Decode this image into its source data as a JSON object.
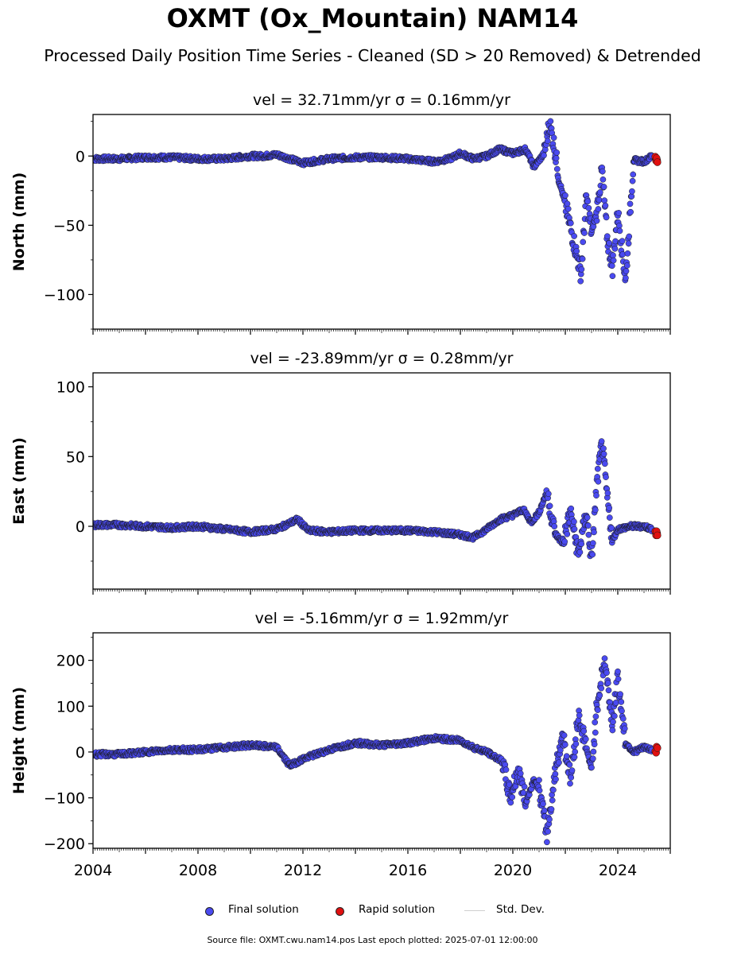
{
  "header": {
    "title": "OXMT (Ox_Mountain) NAM14",
    "subtitle": "Processed Daily Position Time Series - Cleaned (SD > 20 Removed) & Detrended"
  },
  "chart_data": [
    {
      "type": "scatter",
      "panel_title": "vel = 32.71mm/yr   σ = 0.16mm/yr",
      "ylabel": "North (mm)",
      "ylim": [
        -125,
        30
      ],
      "yticks": [
        0,
        -50,
        -100
      ],
      "xlim": [
        2004.0,
        2026.0
      ],
      "series": [
        {
          "name": "Final solution",
          "color": "#4a4af0",
          "points": [
            [
              2004.0,
              -2
            ],
            [
              2005.0,
              -2
            ],
            [
              2006.0,
              -1
            ],
            [
              2007.0,
              -1
            ],
            [
              2008.0,
              -2
            ],
            [
              2009.0,
              -2
            ],
            [
              2010.0,
              0
            ],
            [
              2010.5,
              0
            ],
            [
              2011.0,
              1
            ],
            [
              2011.5,
              -2
            ],
            [
              2012.0,
              -5
            ],
            [
              2013.0,
              -2
            ],
            [
              2014.0,
              -1
            ],
            [
              2015.0,
              -1
            ],
            [
              2016.0,
              -2
            ],
            [
              2017.0,
              -4
            ],
            [
              2017.6,
              -2
            ],
            [
              2018.0,
              2
            ],
            [
              2018.5,
              -2
            ],
            [
              2019.0,
              0
            ],
            [
              2019.5,
              5
            ],
            [
              2020.0,
              2
            ],
            [
              2020.5,
              5
            ],
            [
              2020.8,
              -8
            ],
            [
              2021.2,
              2
            ],
            [
              2021.4,
              24
            ],
            [
              2021.6,
              5
            ],
            [
              2021.8,
              -20
            ],
            [
              2022.0,
              -35
            ],
            [
              2022.3,
              -60
            ],
            [
              2022.6,
              -85
            ],
            [
              2022.8,
              -30
            ],
            [
              2023.0,
              -55
            ],
            [
              2023.2,
              -40
            ],
            [
              2023.4,
              -10
            ],
            [
              2023.6,
              -60
            ],
            [
              2023.8,
              -80
            ],
            [
              2024.0,
              -40
            ],
            [
              2024.3,
              -90
            ],
            [
              2024.6,
              -3
            ],
            [
              2025.0,
              -4
            ],
            [
              2025.3,
              0
            ]
          ]
        },
        {
          "name": "Rapid solution",
          "color": "#e01010",
          "points": [
            [
              2025.45,
              -2
            ],
            [
              2025.5,
              -3
            ]
          ]
        }
      ]
    },
    {
      "type": "scatter",
      "panel_title": "vel = -23.89mm/yr   σ = 0.28mm/yr",
      "ylabel": "East (mm)",
      "ylim": [
        -45,
        110
      ],
      "yticks": [
        100,
        50,
        0
      ],
      "xlim": [
        2004.0,
        2026.0
      ],
      "series": [
        {
          "name": "Final solution",
          "color": "#4a4af0",
          "points": [
            [
              2004.0,
              1
            ],
            [
              2005.0,
              1
            ],
            [
              2006.0,
              0
            ],
            [
              2007.0,
              -1
            ],
            [
              2008.0,
              0
            ],
            [
              2009.0,
              -2
            ],
            [
              2010.0,
              -4
            ],
            [
              2011.0,
              -2
            ],
            [
              2011.8,
              5
            ],
            [
              2012.2,
              -3
            ],
            [
              2013.0,
              -4
            ],
            [
              2014.0,
              -3
            ],
            [
              2015.0,
              -3
            ],
            [
              2016.0,
              -3
            ],
            [
              2017.0,
              -4
            ],
            [
              2018.0,
              -6
            ],
            [
              2018.5,
              -8
            ],
            [
              2019.0,
              -2
            ],
            [
              2019.5,
              5
            ],
            [
              2020.0,
              8
            ],
            [
              2020.4,
              12
            ],
            [
              2020.7,
              3
            ],
            [
              2021.0,
              10
            ],
            [
              2021.3,
              25
            ],
            [
              2021.6,
              -5
            ],
            [
              2021.9,
              -12
            ],
            [
              2022.2,
              10
            ],
            [
              2022.5,
              -20
            ],
            [
              2022.8,
              10
            ],
            [
              2023.0,
              -25
            ],
            [
              2023.2,
              30
            ],
            [
              2023.4,
              60
            ],
            [
              2023.6,
              20
            ],
            [
              2023.8,
              -10
            ],
            [
              2024.0,
              -2
            ],
            [
              2024.5,
              0
            ],
            [
              2025.0,
              0
            ],
            [
              2025.3,
              -2
            ]
          ]
        },
        {
          "name": "Rapid solution",
          "color": "#e01010",
          "points": [
            [
              2025.45,
              -5
            ],
            [
              2025.5,
              -5
            ]
          ]
        }
      ]
    },
    {
      "type": "scatter",
      "panel_title": "vel = -5.16mm/yr   σ = 1.92mm/yr",
      "ylabel": "Height (mm)",
      "ylim": [
        -210,
        260
      ],
      "yticks": [
        200,
        100,
        0,
        -100,
        -200
      ],
      "xticks": [
        "2004",
        "2008",
        "2012",
        "2016",
        "2020",
        "2024"
      ],
      "xlim": [
        2004.0,
        2026.0
      ],
      "series": [
        {
          "name": "Final solution",
          "color": "#4a4af0",
          "points": [
            [
              2004.0,
              -5
            ],
            [
              2005.0,
              -5
            ],
            [
              2006.0,
              0
            ],
            [
              2007.0,
              5
            ],
            [
              2008.0,
              5
            ],
            [
              2009.0,
              10
            ],
            [
              2010.0,
              15
            ],
            [
              2011.0,
              10
            ],
            [
              2011.5,
              -30
            ],
            [
              2012.0,
              -15
            ],
            [
              2013.0,
              5
            ],
            [
              2014.0,
              20
            ],
            [
              2015.0,
              15
            ],
            [
              2016.0,
              20
            ],
            [
              2017.0,
              30
            ],
            [
              2018.0,
              25
            ],
            [
              2018.5,
              10
            ],
            [
              2019.0,
              0
            ],
            [
              2019.6,
              -20
            ],
            [
              2019.9,
              -100
            ],
            [
              2020.2,
              -40
            ],
            [
              2020.5,
              -110
            ],
            [
              2020.8,
              -60
            ],
            [
              2021.0,
              -80
            ],
            [
              2021.3,
              -180
            ],
            [
              2021.6,
              -50
            ],
            [
              2021.9,
              40
            ],
            [
              2022.2,
              -60
            ],
            [
              2022.5,
              80
            ],
            [
              2022.8,
              10
            ],
            [
              2023.0,
              -40
            ],
            [
              2023.2,
              100
            ],
            [
              2023.5,
              200
            ],
            [
              2023.8,
              60
            ],
            [
              2024.0,
              160
            ],
            [
              2024.3,
              20
            ],
            [
              2024.6,
              0
            ],
            [
              2025.0,
              10
            ],
            [
              2025.3,
              5
            ]
          ]
        },
        {
          "name": "Rapid solution",
          "color": "#e01010",
          "points": [
            [
              2025.45,
              0
            ],
            [
              2025.5,
              10
            ]
          ]
        }
      ]
    }
  ],
  "legend": {
    "items": [
      {
        "label": "Final solution",
        "color": "#4a4af0"
      },
      {
        "label": "Rapid solution",
        "color": "#e01010"
      },
      {
        "label": "Std. Dev.",
        "color": "#cfcfcf"
      }
    ]
  },
  "footer": {
    "note": "Source file: OXMT.cwu.nam14.pos  Last epoch plotted: 2025-07-01 12:00:00"
  }
}
